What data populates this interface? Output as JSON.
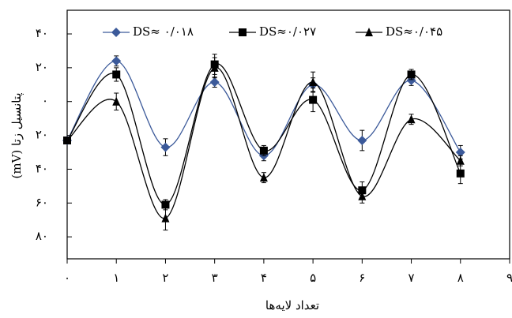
{
  "chart_data": {
    "type": "line",
    "x_label": "تعداد لایه‌ها",
    "y_label": "پتانسیل زتا (mV)",
    "x": [
      0,
      1,
      2,
      3,
      4,
      5,
      6,
      7,
      8
    ],
    "xlim": [
      0,
      9
    ],
    "xticks": [
      {
        "value": 0,
        "label": "۰"
      },
      {
        "value": 1,
        "label": "۱"
      },
      {
        "value": 2,
        "label": "۲"
      },
      {
        "value": 3,
        "label": "۳"
      },
      {
        "value": 4,
        "label": "۴"
      },
      {
        "value": 5,
        "label": "۵"
      },
      {
        "value": 6,
        "label": "۶"
      },
      {
        "value": 7,
        "label": "۷"
      },
      {
        "value": 8,
        "label": "۸"
      },
      {
        "value": 9,
        "label": "۹"
      }
    ],
    "ylim": [
      -93,
      54
    ],
    "yticks": [
      {
        "value": 40,
        "label": "۴۰"
      },
      {
        "value": 20,
        "label": "۲۰"
      },
      {
        "value": 0,
        "label": "۰"
      },
      {
        "value": -20,
        "label": "۲۰"
      },
      {
        "value": -40,
        "label": "۴۰"
      },
      {
        "value": -60,
        "label": "۶۰"
      },
      {
        "value": -80,
        "label": "۸۰"
      }
    ],
    "legend": "top",
    "series": [
      {
        "name": "DS≈ ۰/۰۱۸",
        "color": "#3c5a9a",
        "marker": "diamond",
        "values": [
          -23,
          24,
          -27,
          11.5,
          -32,
          10,
          -23,
          12.5,
          -30
        ],
        "errors": [
          2,
          3,
          5,
          3,
          3,
          4,
          6,
          3,
          4
        ]
      },
      {
        "name": "DS≈۰/۰۲۷",
        "color": "#000000",
        "marker": "square",
        "values": [
          -23,
          16,
          -61,
          22,
          -29,
          1,
          -52.5,
          16,
          -42.5
        ],
        "errors": [
          2,
          4,
          3,
          6,
          3,
          7,
          5,
          3,
          6
        ]
      },
      {
        "name": "DS≈۰/۰۴۵",
        "color": "#000000",
        "marker": "triangle",
        "values": [
          -23,
          0,
          -69,
          20,
          -45,
          11.5,
          -56,
          -10.5,
          -35
        ],
        "errors": [
          2,
          5,
          7,
          6,
          3,
          6,
          4,
          3,
          3
        ]
      }
    ]
  }
}
